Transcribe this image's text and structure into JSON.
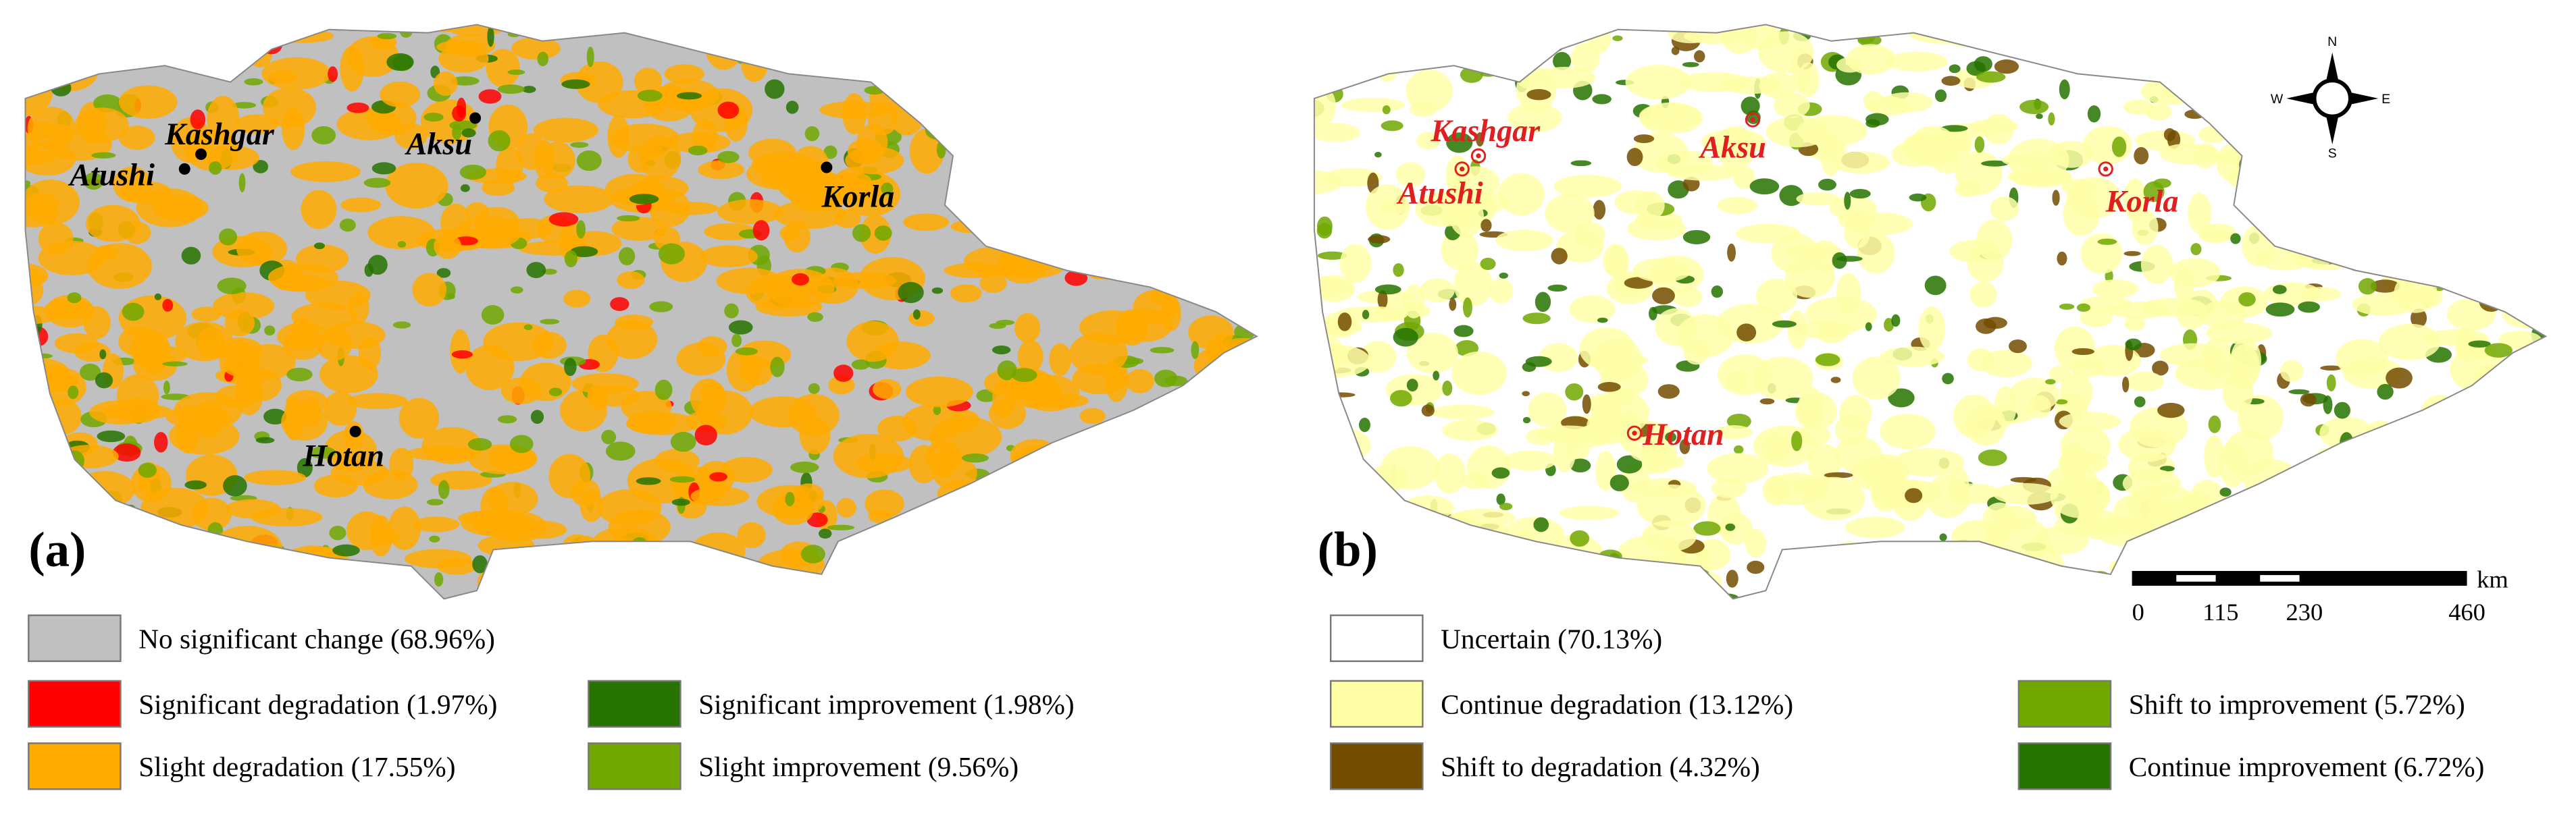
{
  "panels": [
    {
      "label": "(a)",
      "cities": [
        "Kashgar",
        "Atushi",
        "Aksu",
        "Korla",
        "Hotan"
      ],
      "legend": [
        {
          "label": "No significant change (68.96%)",
          "color": "#c0c0c0"
        },
        {
          "label": "Significant degradation (1.97%)",
          "color": "#ff0000"
        },
        {
          "label": "Slight degradation (17.55%)",
          "color": "#ffaa00"
        },
        {
          "label": "Significant improvement (1.98%)",
          "color": "#267300"
        },
        {
          "label": "Slight improvement (9.56%)",
          "color": "#70a800"
        }
      ]
    },
    {
      "label": "(b)",
      "cities": [
        "Kashgar",
        "Atushi",
        "Aksu",
        "Korla",
        "Hotan"
      ],
      "legend": [
        {
          "label": "Uncertain (70.13%)",
          "color": "#ffffff"
        },
        {
          "label": "Continue degradation (13.12%)",
          "color": "#ffffa8"
        },
        {
          "label": "Shift to degradation (4.32%)",
          "color": "#734c00"
        },
        {
          "label": "Shift to improvement (5.72%)",
          "color": "#70a800"
        },
        {
          "label": "Continue improvement (6.72%)",
          "color": "#267300"
        }
      ]
    }
  ],
  "compass": {
    "n": "N",
    "s": "S",
    "e": "E",
    "w": "W"
  },
  "scale_bar": {
    "unit": "km",
    "ticks": [
      "0",
      "115",
      "230",
      "460"
    ]
  }
}
